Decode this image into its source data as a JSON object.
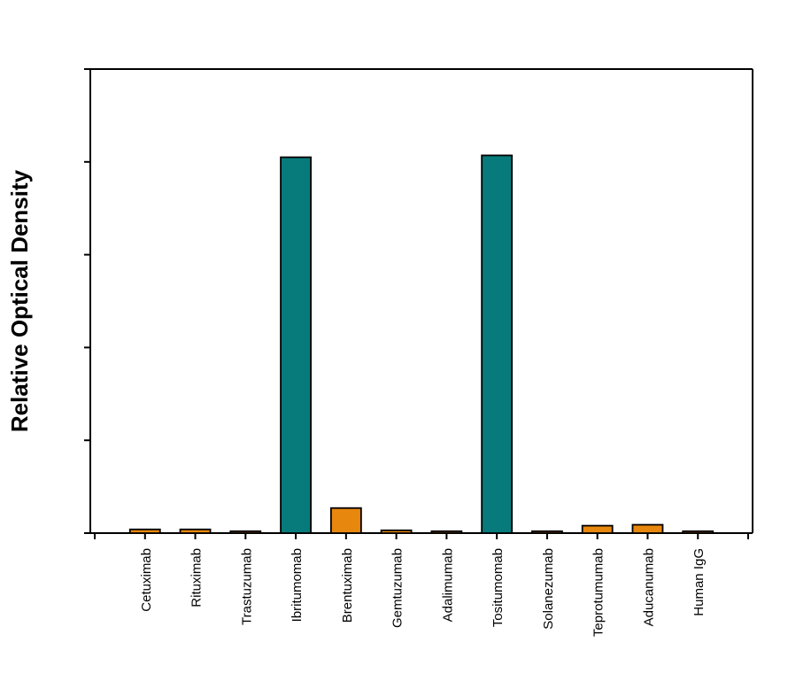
{
  "chart_data": {
    "type": "bar",
    "title": "",
    "xlabel": "",
    "ylabel": "Relative Optical Density",
    "ytick_labels_visible": false,
    "ytick_count": 6,
    "ylim": [
      0,
      5
    ],
    "y_units_note": "values in tick-interval units (tick labels not visible)",
    "grid": false,
    "legend": null,
    "categories": [
      "Cetuximab",
      "Rituximab",
      "Trastuzumab",
      "Ibritumomab",
      "Brentuximab",
      "Gemtuzumab",
      "Adalimumab",
      "Tositumomab",
      "Solanezumab",
      "Teprotumumab",
      "Aducanumab",
      "Human IgG"
    ],
    "values": [
      0.04,
      0.04,
      0.02,
      4.05,
      0.27,
      0.03,
      0.02,
      4.07,
      0.02,
      0.08,
      0.09,
      0.02
    ],
    "bar_colors": [
      "#e8870e",
      "#e8870e",
      "#e8870e",
      "#077b7b",
      "#e8870e",
      "#e8870e",
      "#e8870e",
      "#077b7b",
      "#e8870e",
      "#e8870e",
      "#e8870e",
      "#e8870e"
    ]
  },
  "colors": {
    "highlight": "#077b7b",
    "default": "#e8870e",
    "outline": "#000000",
    "background": "#ffffff"
  }
}
